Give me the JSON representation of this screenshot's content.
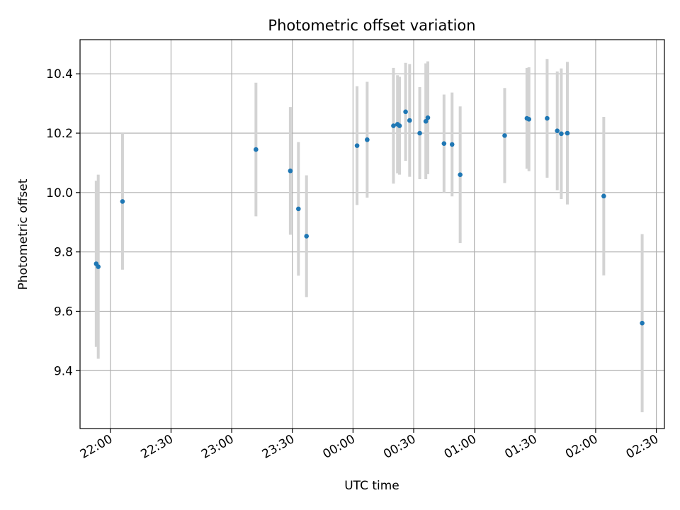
{
  "chart_data": {
    "type": "scatter",
    "title": "Photometric offset variation",
    "xlabel": "UTC time",
    "ylabel": "Photometric offset",
    "xlim": [
      "21:45",
      "02:34"
    ],
    "ylim": [
      9.205,
      10.515
    ],
    "grid": true,
    "x_ticks": [
      "22:00",
      "22:30",
      "23:00",
      "23:30",
      "00:00",
      "00:30",
      "01:00",
      "01:30",
      "02:00",
      "02:30"
    ],
    "y_ticks": [
      "9.4",
      "9.6",
      "9.8",
      "10.0",
      "10.2",
      "10.4"
    ],
    "colors": {
      "point": "#1f77b4",
      "errorbar": "#d3d3d3",
      "grid": "#b0b0b0"
    },
    "series": [
      {
        "points": [
          {
            "x": "21:53",
            "y": 9.76,
            "err": 0.28
          },
          {
            "x": "21:54",
            "y": 9.75,
            "err": 0.31
          },
          {
            "x": "22:06",
            "y": 9.97,
            "err": 0.23
          },
          {
            "x": "23:12",
            "y": 10.145,
            "err": 0.225
          },
          {
            "x": "23:29",
            "y": 10.073,
            "err": 0.215
          },
          {
            "x": "23:33",
            "y": 9.945,
            "err": 0.225
          },
          {
            "x": "23:37",
            "y": 9.853,
            "err": 0.205
          },
          {
            "x": "00:02",
            "y": 10.158,
            "err": 0.2
          },
          {
            "x": "00:07",
            "y": 10.178,
            "err": 0.195
          },
          {
            "x": "00:20",
            "y": 10.225,
            "err": 0.195
          },
          {
            "x": "00:22",
            "y": 10.23,
            "err": 0.165
          },
          {
            "x": "00:23",
            "y": 10.225,
            "err": 0.165
          },
          {
            "x": "00:26",
            "y": 10.272,
            "err": 0.165
          },
          {
            "x": "00:28",
            "y": 10.243,
            "err": 0.19
          },
          {
            "x": "00:33",
            "y": 10.2,
            "err": 0.155
          },
          {
            "x": "00:36",
            "y": 10.24,
            "err": 0.195
          },
          {
            "x": "00:37",
            "y": 10.252,
            "err": 0.19
          },
          {
            "x": "00:45",
            "y": 10.165,
            "err": 0.165
          },
          {
            "x": "00:49",
            "y": 10.162,
            "err": 0.175
          },
          {
            "x": "00:53",
            "y": 10.06,
            "err": 0.23
          },
          {
            "x": "01:15",
            "y": 10.192,
            "err": 0.16
          },
          {
            "x": "01:26",
            "y": 10.25,
            "err": 0.17
          },
          {
            "x": "01:27",
            "y": 10.247,
            "err": 0.175
          },
          {
            "x": "01:36",
            "y": 10.25,
            "err": 0.2
          },
          {
            "x": "01:41",
            "y": 10.208,
            "err": 0.2
          },
          {
            "x": "01:43",
            "y": 10.198,
            "err": 0.22
          },
          {
            "x": "01:46",
            "y": 10.2,
            "err": 0.24
          },
          {
            "x": "02:04",
            "y": 9.988,
            "err": 0.267
          },
          {
            "x": "02:23",
            "y": 9.56,
            "err": 0.3
          }
        ]
      }
    ]
  }
}
